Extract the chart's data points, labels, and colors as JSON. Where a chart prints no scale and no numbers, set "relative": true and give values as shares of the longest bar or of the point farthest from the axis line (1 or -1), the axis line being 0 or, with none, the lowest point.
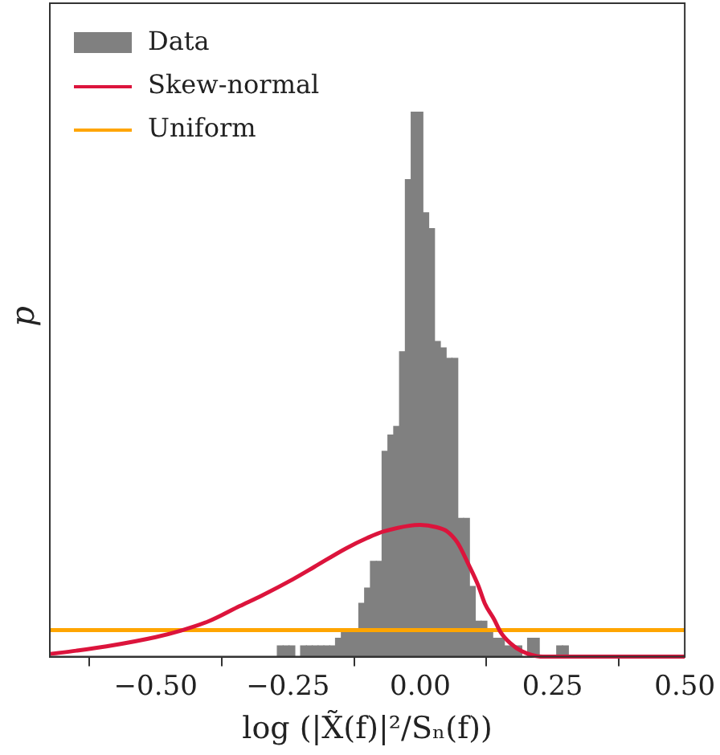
{
  "chart_data": {
    "type": "histogram",
    "relative": true,
    "xlabel": "log (|X̃(f)|²/Sₙ(f))",
    "ylabel": "p",
    "xlim": [
      -0.7,
      0.5
    ],
    "xticks": [
      {
        "value": -0.5,
        "label": "−0.50"
      },
      {
        "value": -0.25,
        "label": "−0.25"
      },
      {
        "value": 0,
        "label": "0.00"
      },
      {
        "value": 0.25,
        "label": "0.25"
      },
      {
        "value": 0.5,
        "label": "0.50"
      }
    ],
    "bins": [
      -0.27,
      -0.259,
      -0.248,
      -0.237,
      -0.226,
      -0.215,
      -0.204,
      -0.193,
      -0.182,
      -0.171,
      -0.16,
      -0.149,
      -0.138,
      -0.127,
      -0.116,
      -0.105,
      -0.094,
      -0.083,
      -0.072,
      -0.061,
      -0.05,
      -0.039,
      -0.028,
      -0.017,
      -0.006,
      0.005,
      0.016,
      0.027,
      0.038,
      0.049,
      0.06,
      0.071,
      0.082,
      0.093,
      0.104,
      0.115,
      0.126,
      0.137,
      0.148,
      0.159,
      0.17,
      0.181,
      0.192,
      0.203,
      0.214,
      0.225,
      0.236,
      0.247,
      0.258,
      0.269,
      0.28
    ],
    "series": [
      {
        "name": "Data",
        "color": "#808080",
        "values": [
          0.02,
          0.02,
          0.02,
          0,
          0.02,
          0.02,
          0.02,
          0.02,
          0.02,
          0.02,
          0.034,
          0.048,
          0.048,
          0.048,
          0.098,
          0.126,
          0.175,
          0.175,
          0.377,
          0.407,
          0.423,
          0.56,
          0.876,
          1,
          1,
          0.815,
          0.786,
          0.579,
          0.567,
          0.548,
          0.548,
          0.254,
          0.254,
          0.129,
          0.065,
          0.065,
          0.045,
          0.034,
          0.034,
          0.02,
          0.02,
          0.02,
          0,
          0.034,
          0.034,
          0,
          0,
          0,
          0.02,
          0.02
        ]
      },
      {
        "name": "Skew-normal",
        "type": "line",
        "color": "#dc143c",
        "x": [
          -0.7,
          -0.65,
          -0.593,
          -0.5,
          -0.452,
          -0.4,
          -0.341,
          -0.3,
          -0.241,
          -0.2,
          -0.14,
          -0.1,
          -0.069,
          0,
          0.03,
          0.051,
          0.07,
          0.092,
          0.11,
          0.122,
          0.14,
          0.152,
          0.17,
          0.192,
          0.232,
          0.3,
          0.5
        ],
        "values": [
          0.005,
          0.011,
          0.019,
          0.036,
          0.048,
          0.065,
          0.093,
          0.112,
          0.142,
          0.165,
          0.199,
          0.218,
          0.23,
          0.242,
          0.238,
          0.23,
          0.21,
          0.168,
          0.13,
          0.098,
          0.068,
          0.045,
          0.025,
          0.01,
          0,
          0,
          0
        ]
      },
      {
        "name": "Uniform",
        "type": "line",
        "color": "#ffa500",
        "x": [
          -0.7,
          0.5
        ],
        "values": [
          0.049,
          0.049
        ]
      }
    ],
    "grid": false,
    "legend": "top left",
    "marker": "none",
    "line_style": "solid"
  }
}
